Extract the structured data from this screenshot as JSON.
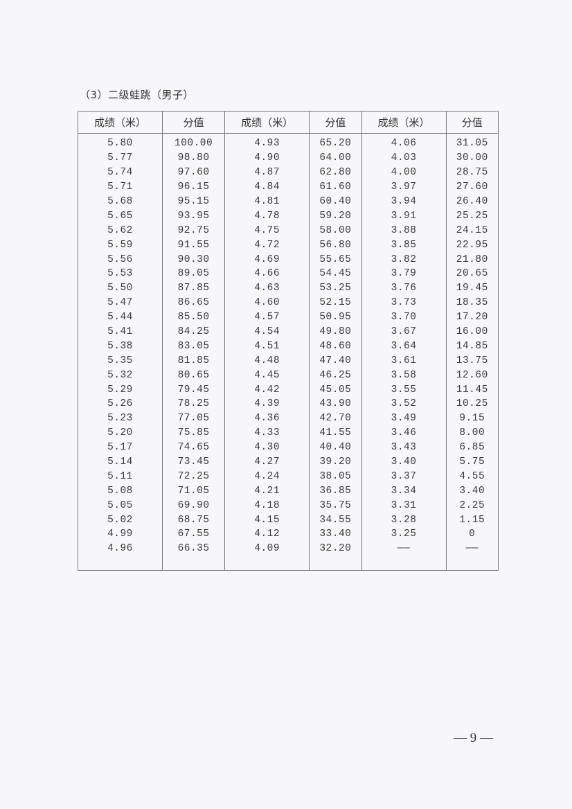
{
  "section_title": "（3）二级蛙跳（男子）",
  "table": {
    "headers": [
      "成绩（米）",
      "分值",
      "成绩（米）",
      "分值",
      "成绩（米）",
      "分值"
    ],
    "rows": [
      [
        "5.80",
        "100.00",
        "4.93",
        "65.20",
        "4.06",
        "31.05"
      ],
      [
        "5.77",
        "98.80",
        "4.90",
        "64.00",
        "4.03",
        "30.00"
      ],
      [
        "5.74",
        "97.60",
        "4.87",
        "62.80",
        "4.00",
        "28.75"
      ],
      [
        "5.71",
        "96.15",
        "4.84",
        "61.60",
        "3.97",
        "27.60"
      ],
      [
        "5.68",
        "95.15",
        "4.81",
        "60.40",
        "3.94",
        "26.40"
      ],
      [
        "5.65",
        "93.95",
        "4.78",
        "59.20",
        "3.91",
        "25.25"
      ],
      [
        "5.62",
        "92.75",
        "4.75",
        "58.00",
        "3.88",
        "24.15"
      ],
      [
        "5.59",
        "91.55",
        "4.72",
        "56.80",
        "3.85",
        "22.95"
      ],
      [
        "5.56",
        "90.30",
        "4.69",
        "55.65",
        "3.82",
        "21.80"
      ],
      [
        "5.53",
        "89.05",
        "4.66",
        "54.45",
        "3.79",
        "20.65"
      ],
      [
        "5.50",
        "87.85",
        "4.63",
        "53.25",
        "3.76",
        "19.45"
      ],
      [
        "5.47",
        "86.65",
        "4.60",
        "52.15",
        "3.73",
        "18.35"
      ],
      [
        "5.44",
        "85.50",
        "4.57",
        "50.95",
        "3.70",
        "17.20"
      ],
      [
        "5.41",
        "84.25",
        "4.54",
        "49.80",
        "3.67",
        "16.00"
      ],
      [
        "5.38",
        "83.05",
        "4.51",
        "48.60",
        "3.64",
        "14.85"
      ],
      [
        "5.35",
        "81.85",
        "4.48",
        "47.40",
        "3.61",
        "13.75"
      ],
      [
        "5.32",
        "80.65",
        "4.45",
        "46.25",
        "3.58",
        "12.60"
      ],
      [
        "5.29",
        "79.45",
        "4.42",
        "45.05",
        "3.55",
        "11.45"
      ],
      [
        "5.26",
        "78.25",
        "4.39",
        "43.90",
        "3.52",
        "10.25"
      ],
      [
        "5.23",
        "77.05",
        "4.36",
        "42.70",
        "3.49",
        "9.15"
      ],
      [
        "5.20",
        "75.85",
        "4.33",
        "41.55",
        "3.46",
        "8.00"
      ],
      [
        "5.17",
        "74.65",
        "4.30",
        "40.40",
        "3.43",
        "6.85"
      ],
      [
        "5.14",
        "73.45",
        "4.27",
        "39.20",
        "3.40",
        "5.75"
      ],
      [
        "5.11",
        "72.25",
        "4.24",
        "38.05",
        "3.37",
        "4.55"
      ],
      [
        "5.08",
        "71.05",
        "4.21",
        "36.85",
        "3.34",
        "3.40"
      ],
      [
        "5.05",
        "69.90",
        "4.18",
        "35.75",
        "3.31",
        "2.25"
      ],
      [
        "5.02",
        "68.75",
        "4.15",
        "34.55",
        "3.28",
        "1.15"
      ],
      [
        "4.99",
        "67.55",
        "4.12",
        "33.40",
        "3.25",
        "0"
      ],
      [
        "4.96",
        "66.35",
        "4.09",
        "32.20",
        "——",
        "——"
      ]
    ]
  },
  "page_number": "— 9 —"
}
